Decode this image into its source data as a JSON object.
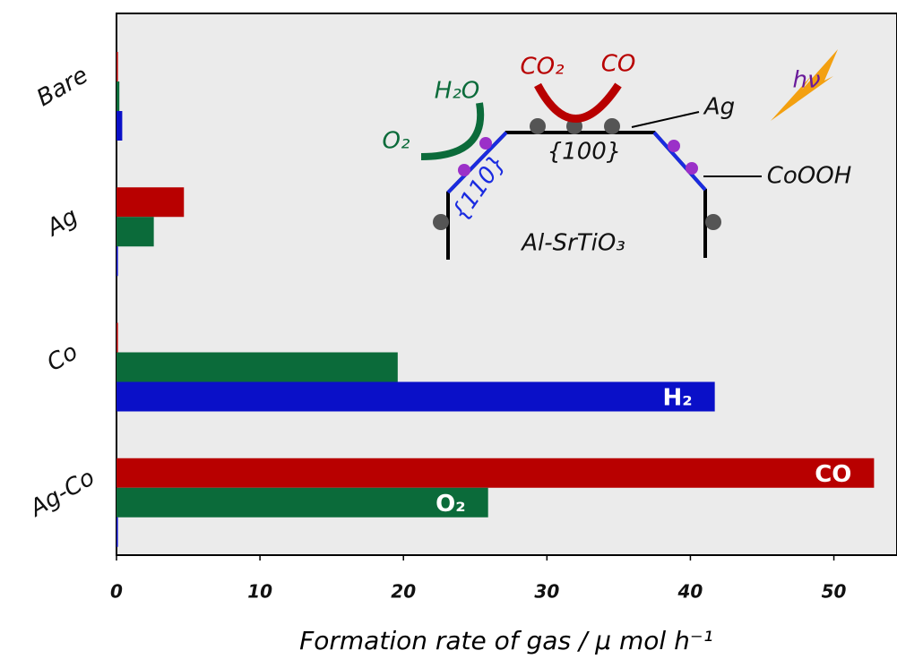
{
  "chart_data": {
    "type": "bar",
    "orientation": "horizontal",
    "xlabel": "Formation rate of gas / μ mol h⁻¹",
    "categories": [
      "Bare",
      "Ag",
      "Co",
      "Ag-Co"
    ],
    "series": [
      {
        "name": "CO",
        "color": "#b80000",
        "values": [
          0.1,
          4.7,
          0.1,
          52.8
        ]
      },
      {
        "name": "O₂",
        "color": "#0b6b3a",
        "values": [
          0.2,
          2.6,
          19.6,
          25.9
        ]
      },
      {
        "name": "H₂",
        "color": "#0a10c8",
        "values": [
          0.4,
          0.1,
          41.7,
          0.1
        ]
      }
    ],
    "xlim": [
      0,
      54.4
    ],
    "xticks": [
      0,
      10,
      20,
      30,
      40,
      50
    ],
    "annotations": [
      "H₂O",
      "CO₂",
      "CO",
      "Ag",
      "O₂",
      "{100}",
      "{110}",
      "CoOOH",
      "Al-SrTiO₃",
      "hν"
    ]
  }
}
